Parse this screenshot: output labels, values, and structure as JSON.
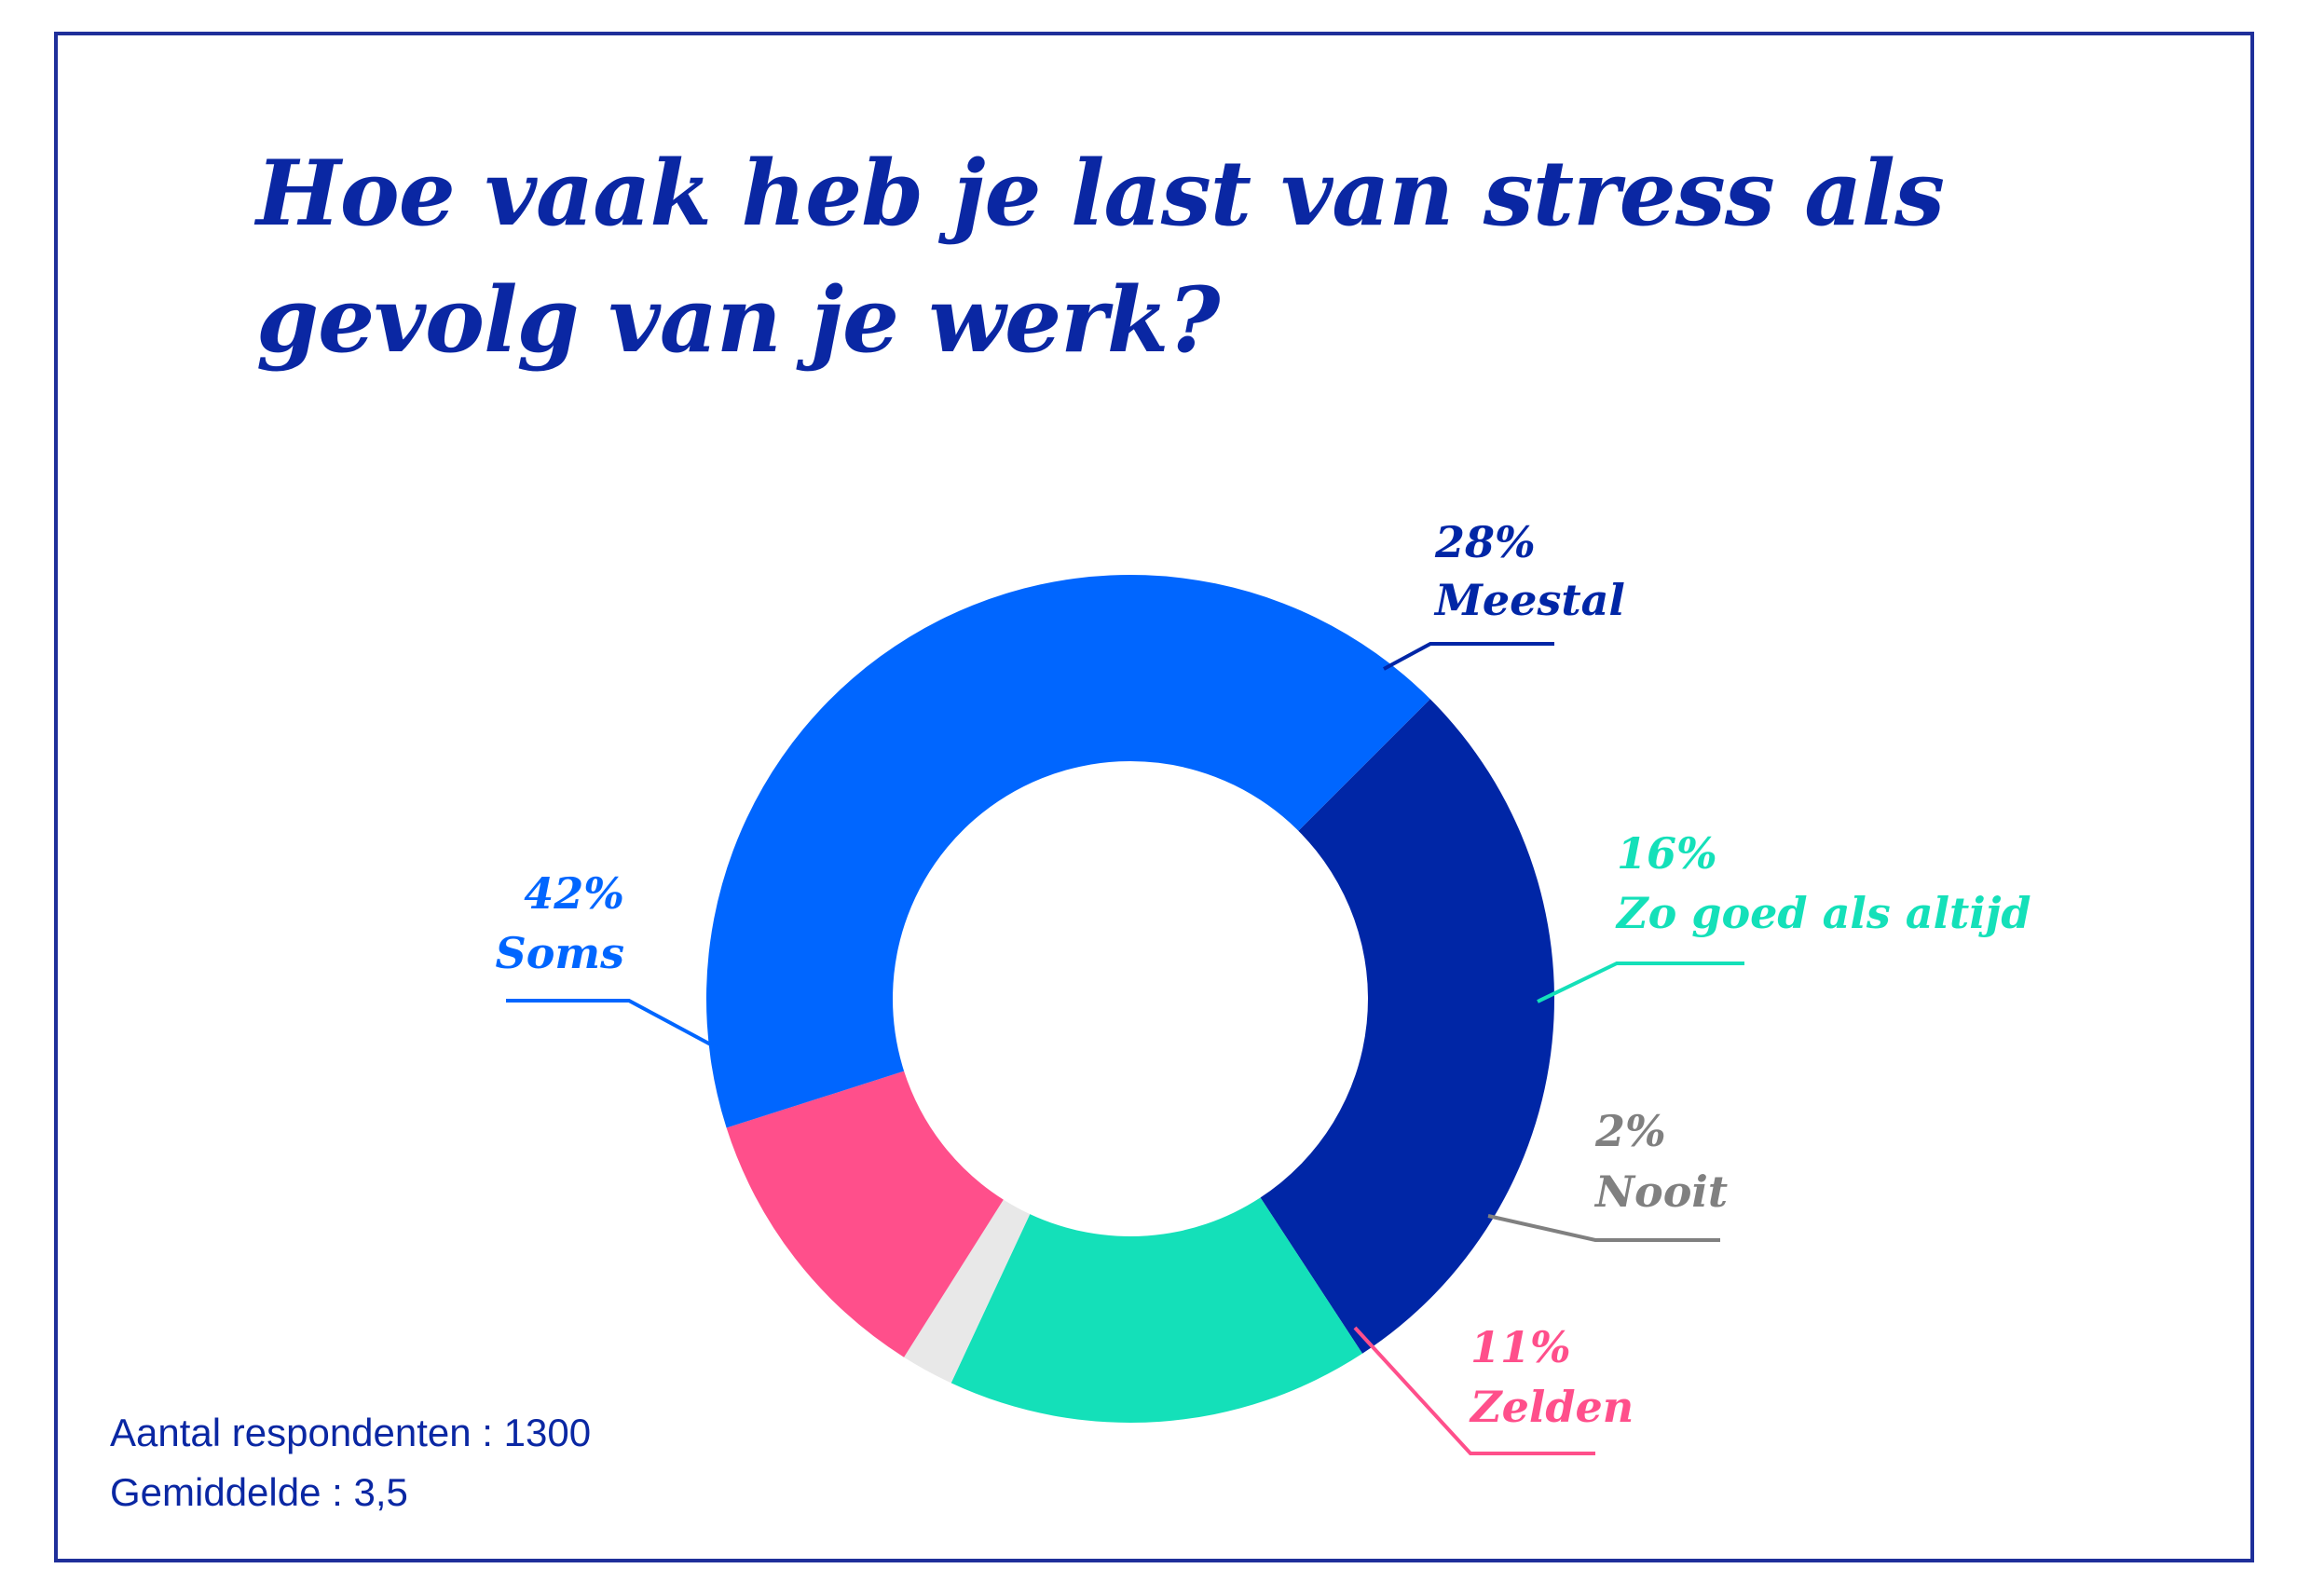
{
  "title": "Hoe vaak heb je last van stress als gevolg van je werk?",
  "chart_data": {
    "type": "pie",
    "variant": "donut",
    "title": "Hoe vaak heb je last van stress als gevolg van je werk?",
    "slices": [
      {
        "label": "Meestal",
        "value": 28,
        "value_label": "28%",
        "color": "#0026a6"
      },
      {
        "label": "Zo goed als altijd",
        "value": 16,
        "value_label": "16%",
        "color": "#14e0b9"
      },
      {
        "label": "Nooit",
        "value": 2,
        "value_label": "2%",
        "color": "#e8e8e8",
        "label_color": "#808080"
      },
      {
        "label": "Zelden",
        "value": 11,
        "value_label": "11%",
        "color": "#ff4f8b"
      },
      {
        "label": "Soms",
        "value": 42,
        "value_label": "42%",
        "color": "#0066ff"
      }
    ],
    "legend": "none"
  },
  "footer": {
    "respondents": "Aantal respondenten : 1300",
    "average": "Gemiddelde : 3,5"
  },
  "colors": {
    "frame": "#1f2f9a",
    "title": "#0a27a3"
  }
}
